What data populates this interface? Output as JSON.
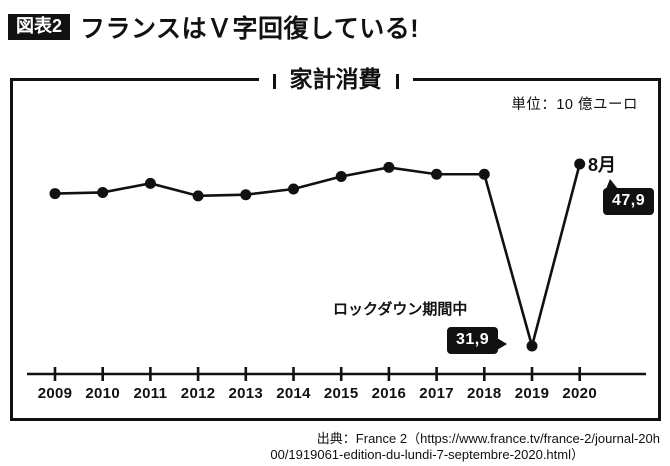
{
  "colors": {
    "ink": "#111111",
    "background": "#ffffff",
    "callout_bg": "#111111",
    "callout_text": "#ffffff"
  },
  "header": {
    "tag": "図表2",
    "title": "フランスはＶ字回復している!"
  },
  "chart_data": {
    "type": "line",
    "title": "家計消費",
    "unit_label": "単位：10 億ユーロ",
    "xlabel": "",
    "ylabel": "",
    "y_axis_shown": false,
    "grid": false,
    "legend_position": "none",
    "x_start": 2009,
    "x_ticks": [
      "2009",
      "2010",
      "2011",
      "2012",
      "2013",
      "2014",
      "2015",
      "2016",
      "2017",
      "2018",
      "2019",
      "2020"
    ],
    "ylim": [
      28,
      52
    ],
    "points": [
      {
        "x": 2009,
        "value": 45.3
      },
      {
        "x": 2010,
        "value": 45.4
      },
      {
        "x": 2011,
        "value": 46.2
      },
      {
        "x": 2012,
        "value": 45.1
      },
      {
        "x": 2013,
        "value": 45.2
      },
      {
        "x": 2014,
        "value": 45.7
      },
      {
        "x": 2015,
        "value": 46.8
      },
      {
        "x": 2016,
        "value": 47.6
      },
      {
        "x": 2017,
        "value": 47.0
      },
      {
        "x": 2018,
        "value": 47.0
      },
      {
        "x": 2019,
        "value": 31.9,
        "note": "lockdown dip"
      },
      {
        "x": 2020,
        "value": 47.9,
        "note": "August"
      }
    ],
    "annotations": {
      "lockdown": {
        "label": "ロックダウン期間中",
        "value_label": "31,9"
      },
      "august": {
        "label": "8月",
        "value_label": "47,9"
      }
    }
  },
  "source": {
    "line1": "出典：France 2（https://www.france.tv/france-2/journal-20h",
    "line2": "00/1919061-edition-du-lundi-7-septembre-2020.html）"
  }
}
